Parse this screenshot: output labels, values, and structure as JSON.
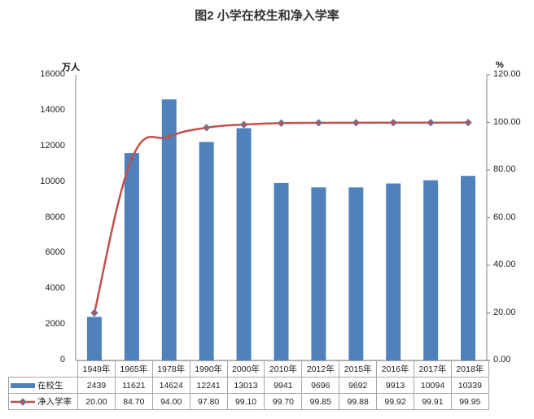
{
  "title": "图2  小学在校生和净入学率",
  "left_unit": "万人",
  "right_unit": "%",
  "left_ticks": [
    "16000",
    "14000",
    "12000",
    "10000",
    "8000",
    "6000",
    "4000",
    "2000",
    "0"
  ],
  "right_ticks": [
    "120.00",
    "100.00",
    "80.00",
    "60.00",
    "40.00",
    "20.00",
    "0.00"
  ],
  "colors": {
    "bar": "#4f81bd",
    "line": "#c0504d",
    "marker": "#4f81bd",
    "axis": "#868686"
  },
  "table": {
    "categories": [
      "1949年",
      "1965年",
      "1978年",
      "1990年",
      "2000年",
      "2010年",
      "2012年",
      "2015年",
      "2016年",
      "2017年",
      "2018年"
    ],
    "rows": [
      {
        "label": "在校生",
        "values": [
          "2439",
          "11621",
          "14624",
          "12241",
          "13013",
          "9941",
          "9696",
          "9692",
          "9913",
          "10094",
          "10339"
        ]
      },
      {
        "label": "净入学率",
        "values": [
          "20.00",
          "84.70",
          "94.00",
          "97.80",
          "99.10",
          "99.70",
          "99.85",
          "99.88",
          "99.92",
          "99.91",
          "99.95"
        ]
      }
    ]
  },
  "chart_data": {
    "type": "bar",
    "title": "图2  小学在校生和净入学率",
    "categories": [
      "1949年",
      "1965年",
      "1978年",
      "1990年",
      "2000年",
      "2010年",
      "2012年",
      "2015年",
      "2016年",
      "2017年",
      "2018年"
    ],
    "series": [
      {
        "name": "在校生",
        "type": "bar",
        "axis": "left",
        "unit": "万人",
        "values": [
          2439,
          11621,
          14624,
          12241,
          13013,
          9941,
          9696,
          9692,
          9913,
          10094,
          10339
        ]
      },
      {
        "name": "净入学率",
        "type": "line",
        "axis": "right",
        "unit": "%",
        "values": [
          20.0,
          84.7,
          94.0,
          97.8,
          99.1,
          99.7,
          99.85,
          99.88,
          99.92,
          99.91,
          99.95
        ]
      }
    ],
    "ylabel": "万人",
    "y2label": "%",
    "ylim": [
      0,
      16000
    ],
    "y2lim": [
      0,
      120
    ],
    "yticks": [
      0,
      2000,
      4000,
      6000,
      8000,
      10000,
      12000,
      14000,
      16000
    ],
    "y2ticks": [
      0,
      20,
      40,
      60,
      80,
      100,
      120
    ],
    "grid": false,
    "legend_position": "data-table"
  }
}
